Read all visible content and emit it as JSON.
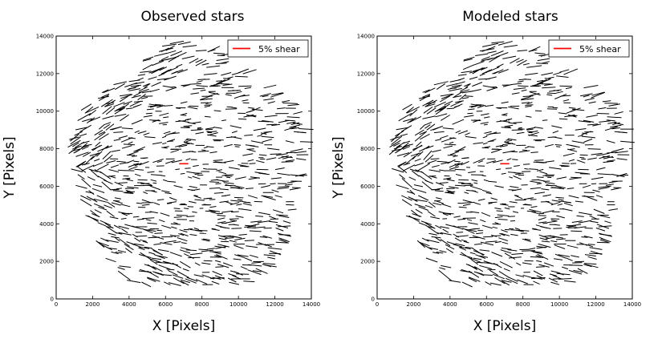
{
  "chart_data": [
    {
      "type": "scatter",
      "subtype": "whisker",
      "title": "Observed stars",
      "xlabel": "X [Pixels]",
      "ylabel": "Y [Pixels]",
      "xlim": [
        0,
        14000
      ],
      "ylim": [
        0,
        14000
      ],
      "xticks": [
        "0",
        "2000",
        "4000",
        "6000",
        "8000",
        "10000",
        "12000",
        "14000"
      ],
      "yticks": [
        "0",
        "2000",
        "4000",
        "6000",
        "8000",
        "10000",
        "12000",
        "14000"
      ],
      "legend": {
        "label": "5% shear",
        "position": "top-right",
        "color": "#ff0000"
      },
      "shear_scale_bar": {
        "x": 7000,
        "y": 7200,
        "shear": 0.05,
        "color": "#ff0000"
      },
      "whisker_color": "#000000",
      "grid": false
    },
    {
      "type": "scatter",
      "subtype": "whisker",
      "title": "Modeled stars",
      "xlabel": "X [Pixels]",
      "ylabel": "Y [Pixels]",
      "xlim": [
        0,
        14000
      ],
      "ylim": [
        0,
        14000
      ],
      "xticks": [
        "0",
        "2000",
        "4000",
        "6000",
        "8000",
        "10000",
        "12000",
        "14000"
      ],
      "yticks": [
        "0",
        "2000",
        "4000",
        "6000",
        "8000",
        "10000",
        "12000",
        "14000"
      ],
      "legend": {
        "label": "5% shear",
        "position": "top-right",
        "color": "#ff0000"
      },
      "shear_scale_bar": {
        "x": 7000,
        "y": 7200,
        "shear": 0.05,
        "color": "#ff0000"
      },
      "whisker_color": "#000000",
      "grid": false
    }
  ]
}
